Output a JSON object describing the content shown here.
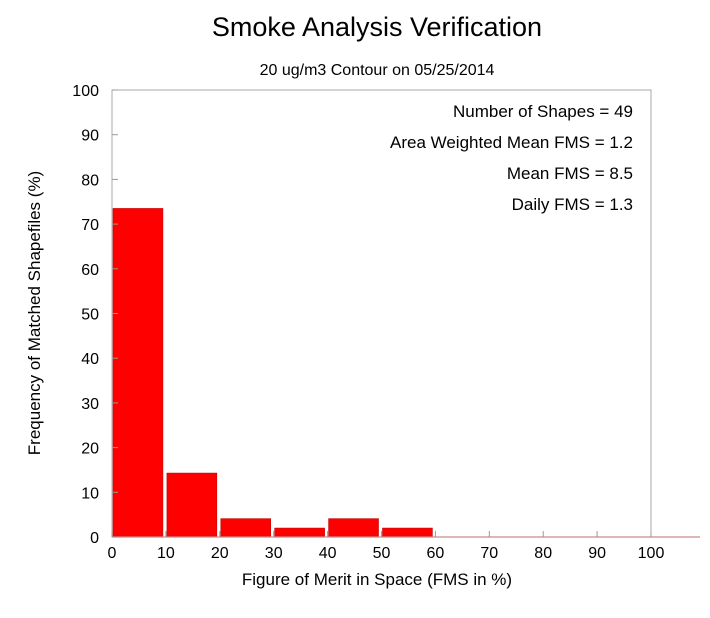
{
  "chart_data": {
    "type": "bar",
    "title": "Smoke Analysis Verification",
    "subtitle": "20 ug/m3 Contour on 05/25/2014",
    "xlabel": "Figure of Merit in Space (FMS in %)",
    "ylabel": "Frequency of Matched Shapefiles (%)",
    "xlim": [
      0,
      100
    ],
    "ylim": [
      0,
      100
    ],
    "xticks": [
      "0",
      "10",
      "20",
      "30",
      "40",
      "50",
      "60",
      "70",
      "80",
      "90",
      "100"
    ],
    "yticks": [
      "0",
      "10",
      "20",
      "30",
      "40",
      "50",
      "60",
      "70",
      "80",
      "90",
      "100"
    ],
    "bins": [
      {
        "start": 0,
        "end": 10,
        "value": 73.5
      },
      {
        "start": 10,
        "end": 20,
        "value": 14.3
      },
      {
        "start": 20,
        "end": 30,
        "value": 4.1
      },
      {
        "start": 30,
        "end": 40,
        "value": 2.0
      },
      {
        "start": 40,
        "end": 50,
        "value": 4.1
      },
      {
        "start": 50,
        "end": 60,
        "value": 2.0
      },
      {
        "start": 60,
        "end": 70,
        "value": 0
      },
      {
        "start": 70,
        "end": 80,
        "value": 0
      },
      {
        "start": 80,
        "end": 90,
        "value": 0
      },
      {
        "start": 90,
        "end": 100,
        "value": 0
      }
    ],
    "annotations": [
      "Number of Shapes = 49",
      "Area Weighted Mean FMS = 1.2",
      "Mean FMS = 8.5",
      "Daily FMS = 1.3"
    ],
    "bar_color": "#ff0000",
    "grid": false,
    "legend": "none"
  }
}
